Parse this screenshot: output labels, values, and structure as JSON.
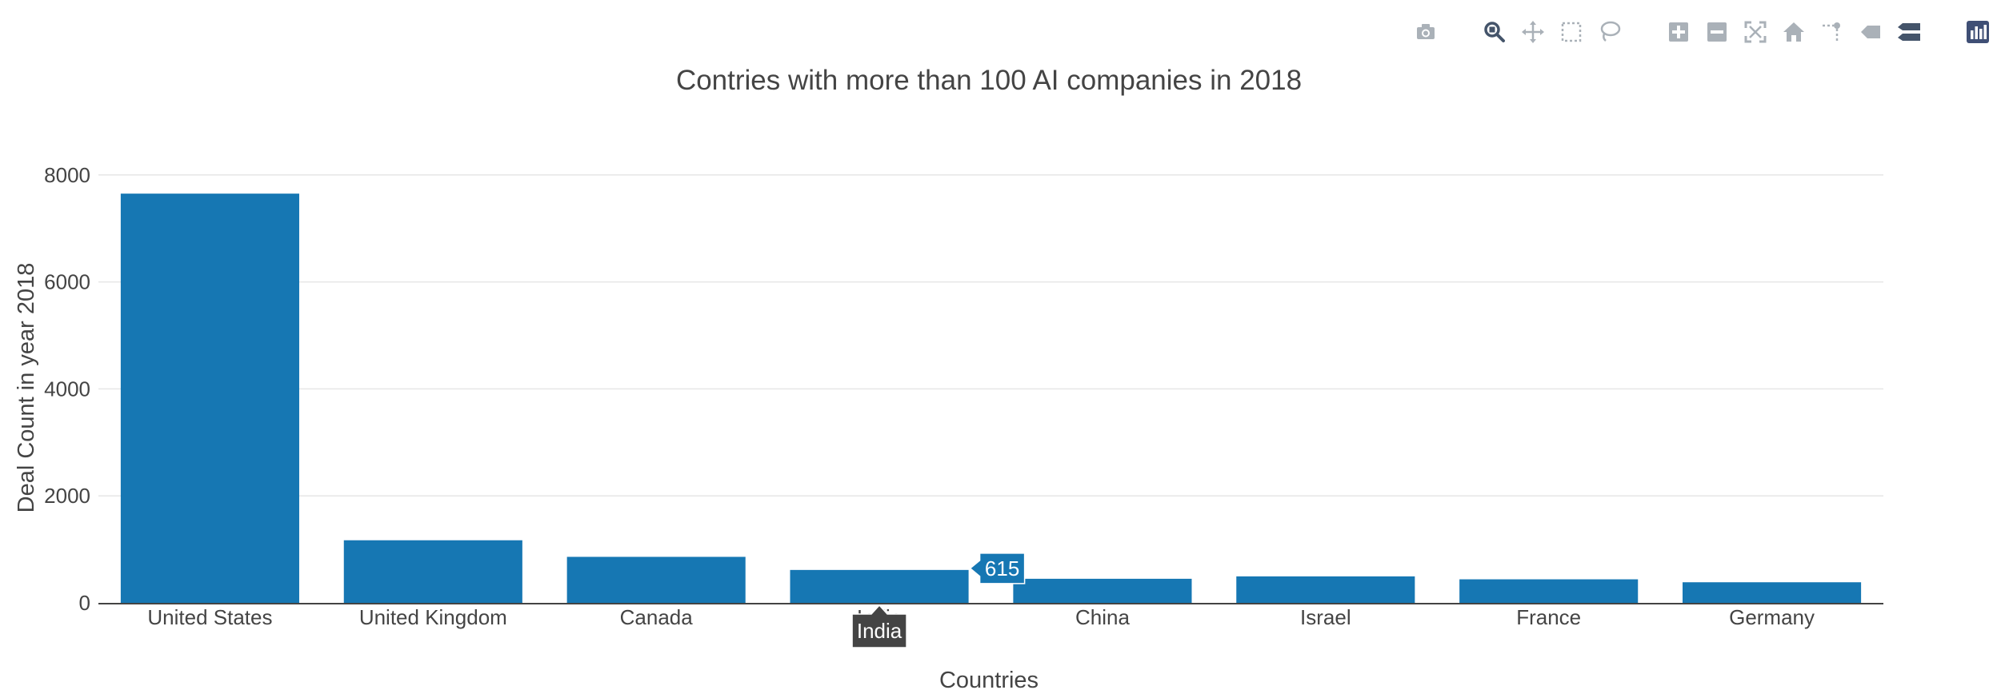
{
  "colors": {
    "bar": "#1f77b4",
    "bar_fill": "#1677b3",
    "grid": "#e6e6e6",
    "axis_line": "#444444",
    "text": "#444444",
    "hover_bg": "#444444",
    "hover_text": "#ffffff",
    "modebar_icon": "#aab1b8",
    "modebar_active": "#44546a",
    "logo_bg": "#3f4f75"
  },
  "modebar": {
    "groups": [
      [
        "camera-icon"
      ],
      [
        "zoom-icon",
        "pan-icon",
        "box-select-icon",
        "lasso-select-icon"
      ],
      [
        "zoom-in-icon",
        "zoom-out-icon",
        "autoscale-icon",
        "reset-axes-icon",
        "spike-lines-icon",
        "hover-closest-icon",
        "hover-compare-icon"
      ],
      [
        "plotly-logo-icon"
      ]
    ],
    "active": "zoom-icon"
  },
  "chart_data": {
    "type": "bar",
    "title": "Contries with more than 100 AI companies in 2018",
    "xlabel": "Countries",
    "ylabel": "Deal Count in year 2018",
    "categories": [
      "United States",
      "United Kingdom",
      "Canada",
      "India",
      "China",
      "Israel",
      "France",
      "Germany"
    ],
    "values": [
      7650,
      1170,
      860,
      615,
      450,
      495,
      440,
      385
    ],
    "ylim": [
      0,
      8400
    ],
    "yticks": [
      0,
      2000,
      4000,
      6000,
      8000
    ],
    "grid": true,
    "legend": "none",
    "hover": {
      "category": "India",
      "value_label": "615",
      "category_label": "India"
    }
  }
}
